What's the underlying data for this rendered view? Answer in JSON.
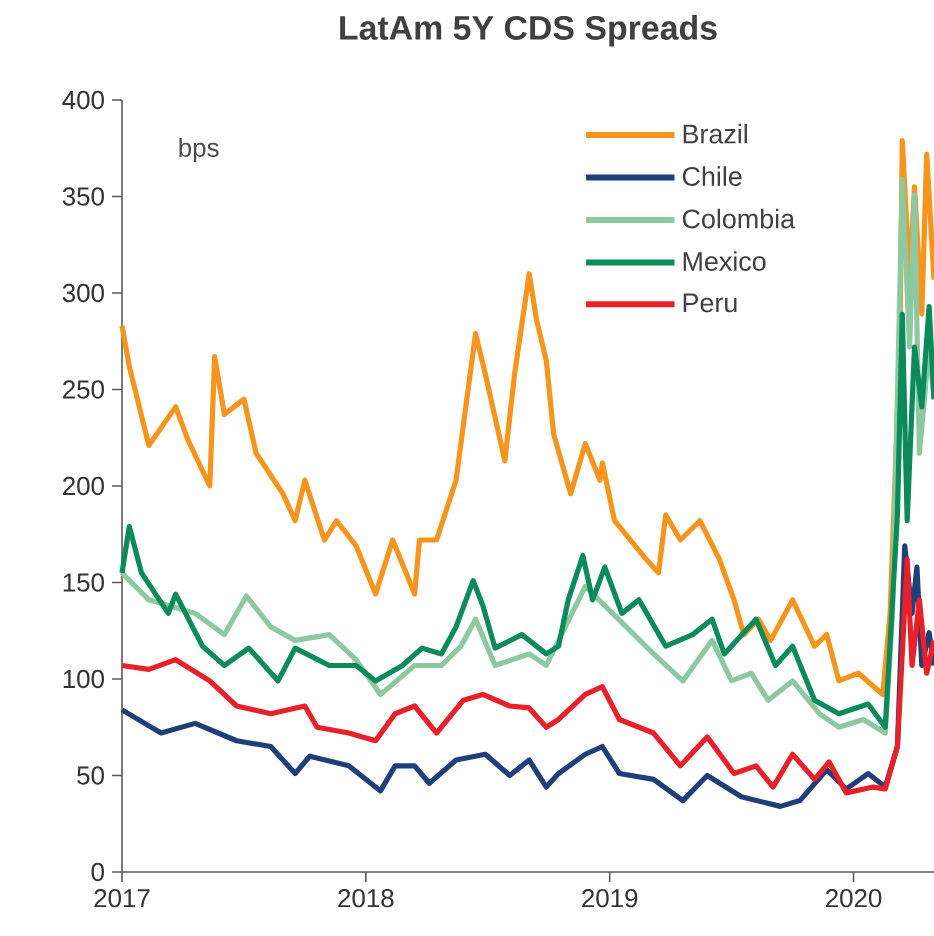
{
  "chart_data": {
    "type": "line",
    "title": "LatAm 5Y CDS Spreads",
    "annotations": [
      "bps"
    ],
    "xlim": [
      2017,
      2020.33
    ],
    "xticks": [
      2017,
      2018,
      2019,
      2020
    ],
    "ylim": [
      0,
      400
    ],
    "yticks": [
      0,
      50,
      100,
      150,
      200,
      250,
      300,
      350,
      400
    ],
    "grid": false,
    "legend": "top right",
    "marker": "none",
    "line_style": "solid",
    "series": [
      {
        "name": "Brazil",
        "color": "#f7941d",
        "x": [
          2017.0,
          2017.03,
          2017.11,
          2017.22,
          2017.27,
          2017.36,
          2017.38,
          2017.42,
          2017.5,
          2017.55,
          2017.66,
          2017.71,
          2017.75,
          2017.83,
          2017.88,
          2017.96,
          2018.04,
          2018.11,
          2018.2,
          2018.22,
          2018.29,
          2018.37,
          2018.45,
          2018.49,
          2018.57,
          2018.61,
          2018.67,
          2018.7,
          2018.74,
          2018.77,
          2018.84,
          2018.9,
          2018.96,
          2018.97,
          2019.02,
          2019.15,
          2019.2,
          2019.23,
          2019.29,
          2019.37,
          2019.45,
          2019.51,
          2019.55,
          2019.61,
          2019.66,
          2019.75,
          2019.84,
          2019.89,
          2019.94,
          2020.02,
          2020.12,
          2020.15,
          2020.19,
          2020.2,
          2020.23,
          2020.25,
          2020.28,
          2020.3,
          2020.33
        ],
        "values": [
          283,
          262,
          221,
          241,
          224,
          200,
          267,
          237,
          245,
          217,
          196,
          182,
          203,
          172,
          182,
          169,
          144,
          172,
          144,
          172,
          172,
          203,
          279,
          258,
          213,
          258,
          310,
          286,
          265,
          227,
          196,
          222,
          203,
          212,
          182,
          162,
          155,
          185,
          172,
          182,
          162,
          141,
          123,
          131,
          120,
          141,
          117,
          123,
          99,
          103,
          92,
          134,
          272,
          379,
          307,
          355,
          289,
          372,
          307
        ]
      },
      {
        "name": "Chile",
        "color": "#1f3f7a",
        "x": [
          2017.0,
          2017.16,
          2017.3,
          2017.47,
          2017.61,
          2017.71,
          2017.77,
          2017.93,
          2018.06,
          2018.12,
          2018.2,
          2018.26,
          2018.37,
          2018.49,
          2018.59,
          2018.67,
          2018.74,
          2018.79,
          2018.9,
          2018.97,
          2019.04,
          2019.18,
          2019.3,
          2019.4,
          2019.54,
          2019.7,
          2019.78,
          2019.89,
          2019.97,
          2020.06,
          2020.13,
          2020.18,
          2020.21,
          2020.24,
          2020.26,
          2020.28,
          2020.31,
          2020.33
        ],
        "values": [
          84,
          72,
          77,
          68,
          65,
          51,
          60,
          55,
          42,
          55,
          55,
          46,
          58,
          61,
          50,
          58,
          44,
          51,
          61,
          65,
          51,
          48,
          37,
          50,
          39,
          34,
          37,
          53,
          43,
          51,
          44,
          65,
          169,
          134,
          158,
          107,
          124,
          107
        ]
      },
      {
        "name": "Colombia",
        "color": "#8cc9a0",
        "x": [
          2017.0,
          2017.11,
          2017.3,
          2017.42,
          2017.51,
          2017.61,
          2017.71,
          2017.85,
          2017.96,
          2018.06,
          2018.2,
          2018.31,
          2018.39,
          2018.45,
          2018.53,
          2018.67,
          2018.74,
          2018.9,
          2018.98,
          2019.1,
          2019.18,
          2019.3,
          2019.42,
          2019.5,
          2019.58,
          2019.65,
          2019.75,
          2019.86,
          2019.94,
          2020.04,
          2020.13,
          2020.16,
          2020.2,
          2020.23,
          2020.25,
          2020.27,
          2020.31,
          2020.33
        ],
        "values": [
          155,
          141,
          134,
          123,
          143,
          127,
          120,
          123,
          110,
          92,
          107,
          107,
          117,
          131,
          107,
          113,
          107,
          148,
          138,
          123,
          113,
          99,
          120,
          99,
          103,
          89,
          99,
          82,
          75,
          79,
          72,
          134,
          359,
          272,
          351,
          217,
          272,
          245
        ]
      },
      {
        "name": "Mexico",
        "color": "#0b8a5a",
        "x": [
          2017.0,
          2017.03,
          2017.08,
          2017.19,
          2017.22,
          2017.33,
          2017.42,
          2017.52,
          2017.64,
          2017.71,
          2017.85,
          2017.96,
          2018.04,
          2018.15,
          2018.23,
          2018.31,
          2018.37,
          2018.44,
          2018.48,
          2018.53,
          2018.64,
          2018.74,
          2018.79,
          2018.83,
          2018.89,
          2018.93,
          2018.98,
          2019.05,
          2019.12,
          2019.23,
          2019.34,
          2019.42,
          2019.47,
          2019.6,
          2019.68,
          2019.75,
          2019.84,
          2019.94,
          2020.06,
          2020.13,
          2020.18,
          2020.2,
          2020.22,
          2020.25,
          2020.28,
          2020.31,
          2020.33
        ],
        "values": [
          155,
          179,
          155,
          134,
          144,
          117,
          107,
          116,
          99,
          116,
          107,
          107,
          99,
          107,
          116,
          113,
          127,
          151,
          138,
          116,
          123,
          113,
          117,
          141,
          164,
          141,
          158,
          134,
          141,
          117,
          123,
          131,
          113,
          131,
          107,
          117,
          89,
          82,
          87,
          75,
          185,
          289,
          182,
          272,
          241,
          293,
          245
        ]
      },
      {
        "name": "Peru",
        "color": "#e8202a",
        "x": [
          2017.0,
          2017.11,
          2017.22,
          2017.36,
          2017.47,
          2017.61,
          2017.75,
          2017.8,
          2017.93,
          2018.04,
          2018.12,
          2018.2,
          2018.29,
          2018.4,
          2018.48,
          2018.59,
          2018.67,
          2018.74,
          2018.79,
          2018.9,
          2018.97,
          2019.04,
          2019.18,
          2019.29,
          2019.4,
          2019.51,
          2019.6,
          2019.67,
          2019.75,
          2019.84,
          2019.9,
          2019.97,
          2020.08,
          2020.13,
          2020.18,
          2020.22,
          2020.24,
          2020.27,
          2020.3,
          2020.33
        ],
        "values": [
          107,
          105,
          110,
          99,
          86,
          82,
          86,
          75,
          72,
          68,
          82,
          86,
          72,
          89,
          92,
          86,
          85,
          75,
          79,
          92,
          96,
          79,
          72,
          55,
          70,
          51,
          55,
          44,
          61,
          48,
          57,
          41,
          44,
          43,
          65,
          162,
          107,
          141,
          103,
          120
        ]
      }
    ]
  }
}
